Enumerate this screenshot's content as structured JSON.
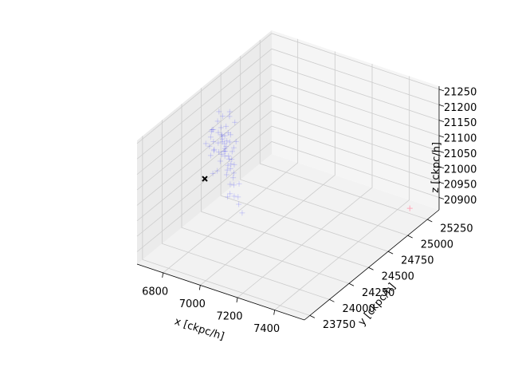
{
  "chart_data": {
    "type": "scatter",
    "projection": "3d",
    "xlabel": "x [ckpc/h]",
    "ylabel": "y [ckpc/h]",
    "zlabel": "z [ckpc/h]",
    "xlim": [
      6660,
      7560
    ],
    "ylim": [
      23680,
      25400
    ],
    "zlim": [
      20860,
      21260
    ],
    "x_ticks": [
      "6800",
      "7000",
      "7200",
      "7400"
    ],
    "y_ticks": [
      "23750",
      "24000",
      "24250",
      "24500",
      "24750",
      "25000",
      "25250"
    ],
    "z_ticks": [
      "20900",
      "20950",
      "21000",
      "21050",
      "21100",
      "21150",
      "21200",
      "21250"
    ],
    "grid": true,
    "series": [
      {
        "marker": "+",
        "color": "#0000ff",
        "alpha": 0.15,
        "points": [
          [
            6755,
            24430,
            21120
          ],
          [
            6760,
            24480,
            21140
          ],
          [
            6762,
            24510,
            21150
          ],
          [
            6770,
            24400,
            21100
          ],
          [
            6772,
            24450,
            21115
          ],
          [
            6775,
            24490,
            21130
          ],
          [
            6778,
            24520,
            21125
          ],
          [
            6780,
            24380,
            21110
          ],
          [
            6782,
            24470,
            21140
          ],
          [
            6785,
            24500,
            21105
          ],
          [
            6788,
            24420,
            21095
          ],
          [
            6790,
            24460,
            21120
          ],
          [
            6792,
            24530,
            21135
          ],
          [
            6795,
            24440,
            21085
          ],
          [
            6798,
            24490,
            21100
          ],
          [
            6800,
            24410,
            21070
          ],
          [
            6802,
            24470,
            21090
          ],
          [
            6805,
            24520,
            21110
          ],
          [
            6808,
            24450,
            21080
          ],
          [
            6810,
            24500,
            21060
          ],
          [
            6812,
            24430,
            21100
          ],
          [
            6815,
            24480,
            21075
          ],
          [
            6818,
            24540,
            21090
          ],
          [
            6820,
            24460,
            21050
          ],
          [
            6822,
            24510,
            21085
          ],
          [
            6825,
            24440,
            21040
          ],
          [
            6828,
            24490,
            21065
          ],
          [
            6830,
            24420,
            21030
          ],
          [
            6832,
            24470,
            21055
          ],
          [
            6835,
            24500,
            21020
          ],
          [
            6838,
            24450,
            21045
          ],
          [
            6840,
            24480,
            21010
          ],
          [
            6742,
            24460,
            21150
          ],
          [
            6748,
            24500,
            21170
          ],
          [
            6752,
            24420,
            21160
          ],
          [
            6758,
            24540,
            21180
          ],
          [
            6765,
            24380,
            21165
          ],
          [
            6768,
            24560,
            21145
          ],
          [
            6774,
            24350,
            21155
          ],
          [
            6778,
            24580,
            21175
          ],
          [
            6845,
            24430,
            21000
          ],
          [
            6848,
            24470,
            20990
          ],
          [
            6852,
            24410,
            20975
          ],
          [
            6855,
            24520,
            20985
          ],
          [
            6858,
            24450,
            20960
          ],
          [
            6862,
            24490,
            20950
          ],
          [
            6795,
            24300,
            21110
          ],
          [
            6805,
            24600,
            21095
          ],
          [
            6790,
            24620,
            21150
          ],
          [
            6815,
            24280,
            21060
          ],
          [
            6750,
            24650,
            21170
          ],
          [
            6735,
            24380,
            21120
          ],
          [
            6730,
            24560,
            21185
          ],
          [
            6870,
            24480,
            20930
          ],
          [
            6880,
            24500,
            20900
          ],
          [
            6865,
            24350,
            20980
          ],
          [
            6812,
            24560,
            21030
          ],
          [
            6805,
            24360,
            21050
          ],
          [
            6788,
            24570,
            21120
          ],
          [
            6776,
            24330,
            21130
          ],
          [
            6799,
            24440,
            21135
          ],
          [
            6810,
            24470,
            21125
          ],
          [
            6795,
            24480,
            21095
          ]
        ]
      },
      {
        "marker": "+",
        "color": "#ffa0b4",
        "alpha": 0.9,
        "points": [
          [
            7470,
            25240,
            20880
          ]
        ]
      },
      {
        "marker": "x",
        "color": "#000000",
        "alpha": 1.0,
        "points": [
          [
            6780,
            24260,
            21040
          ]
        ]
      }
    ]
  }
}
